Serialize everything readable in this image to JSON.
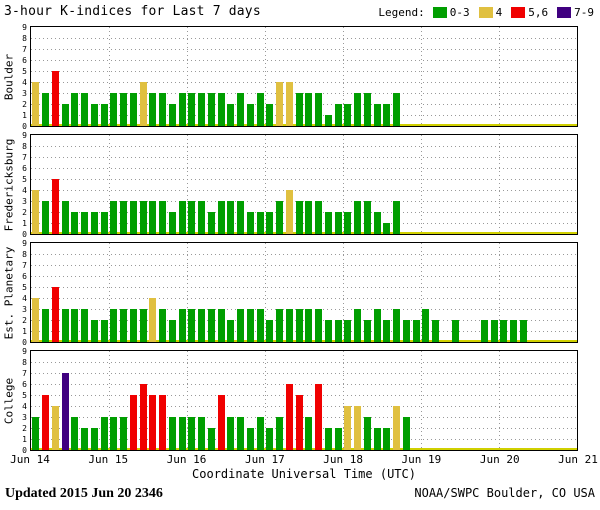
{
  "title": "3-hour K-indices for Last 7 days",
  "legend": {
    "label": "Legend:",
    "items": [
      {
        "label": "0-3",
        "color": "#009e00"
      },
      {
        "label": "4",
        "color": "#e0c040"
      },
      {
        "label": "5,6",
        "color": "#f00000"
      },
      {
        "label": "7-9",
        "color": "#400080"
      }
    ]
  },
  "footer": {
    "updated_label": "Updated",
    "updated_value": "2015 Jun 20 2346",
    "source": "NOAA/SWPC Boulder, CO USA"
  },
  "chart_data": {
    "type": "bar",
    "title": "3-hour K-indices for Last 7 days",
    "xlabel": "Coordinate Universal Time (UTC)",
    "ylabel": "",
    "ylim": [
      0,
      9
    ],
    "y_ticks": [
      0,
      1,
      2,
      3,
      4,
      5,
      6,
      7,
      8,
      9
    ],
    "x_ticks": [
      "Jun 14",
      "Jun 15",
      "Jun 16",
      "Jun 17",
      "Jun 18",
      "Jun 19",
      "Jun 20",
      "Jun 21"
    ],
    "bars_per_day": 8,
    "grid": true,
    "legend_position": "top-right",
    "baseline_color": "#d0d000",
    "color_scale": [
      {
        "range": "0-3",
        "max": 3,
        "color": "#009e00"
      },
      {
        "range": "4",
        "max": 4,
        "color": "#e0c040"
      },
      {
        "range": "5,6",
        "max": 6,
        "color": "#f00000"
      },
      {
        "range": "7-9",
        "max": 9,
        "color": "#400080"
      }
    ],
    "series": [
      {
        "name": "Boulder",
        "values": [
          4,
          3,
          5,
          2,
          3,
          3,
          2,
          2,
          3,
          3,
          3,
          4,
          3,
          3,
          2,
          3,
          3,
          3,
          3,
          3,
          2,
          3,
          2,
          3,
          2,
          4,
          4,
          3,
          3,
          3,
          1,
          2,
          2,
          3,
          3,
          2,
          2,
          3,
          null,
          null,
          null,
          null,
          null,
          null,
          null,
          null,
          null,
          null,
          null,
          null,
          null,
          null,
          null,
          null,
          null,
          null
        ]
      },
      {
        "name": "Fredericksburg",
        "values": [
          4,
          3,
          5,
          3,
          2,
          2,
          2,
          2,
          3,
          3,
          3,
          3,
          3,
          3,
          2,
          3,
          3,
          3,
          2,
          3,
          3,
          3,
          2,
          2,
          2,
          3,
          4,
          3,
          3,
          3,
          2,
          2,
          2,
          3,
          3,
          2,
          1,
          3,
          null,
          null,
          null,
          null,
          null,
          null,
          null,
          null,
          null,
          null,
          null,
          null,
          null,
          null,
          null,
          null,
          null,
          null
        ]
      },
      {
        "name": "Est. Planetary",
        "values": [
          4,
          3,
          5,
          3,
          3,
          3,
          2,
          2,
          3,
          3,
          3,
          3,
          4,
          3,
          2,
          3,
          3,
          3,
          3,
          3,
          2,
          3,
          3,
          3,
          2,
          3,
          3,
          3,
          3,
          3,
          2,
          2,
          2,
          3,
          2,
          3,
          2,
          3,
          2,
          2,
          3,
          2,
          null,
          2,
          null,
          null,
          2,
          2,
          2,
          2,
          2,
          null,
          null,
          null,
          null,
          null
        ]
      },
      {
        "name": "College",
        "values": [
          3,
          5,
          4,
          7,
          3,
          2,
          2,
          3,
          3,
          3,
          5,
          6,
          5,
          5,
          3,
          3,
          3,
          3,
          2,
          5,
          3,
          3,
          2,
          3,
          2,
          3,
          6,
          5,
          3,
          6,
          2,
          2,
          4,
          4,
          3,
          2,
          2,
          4,
          3,
          null,
          null,
          null,
          null,
          null,
          null,
          null,
          null,
          null,
          null,
          null,
          null,
          null,
          null,
          null,
          null,
          null
        ]
      }
    ]
  }
}
